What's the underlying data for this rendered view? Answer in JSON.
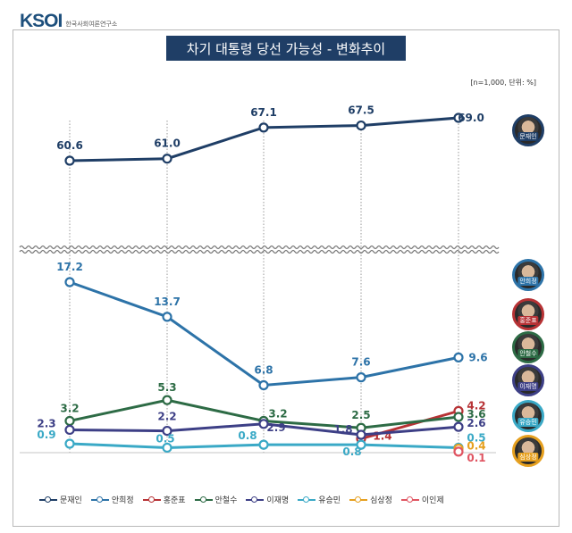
{
  "header": {
    "logo_text": "KSOI",
    "org_name": "한국사회여론연구소"
  },
  "title": "차기 대통령 당선 가능성 - 변화추이",
  "note": "[n=1,000, 단위: %]",
  "chart_data": {
    "type": "line",
    "x": [
      1,
      2,
      3,
      4,
      5
    ],
    "axis_break": true,
    "series": [
      {
        "name": "문재인",
        "color": "#1f3e66",
        "values": [
          60.6,
          61.0,
          67.1,
          67.5,
          69.0
        ],
        "labels": [
          "60.6",
          "61.0",
          "67.1",
          "67.5",
          "69.0"
        ]
      },
      {
        "name": "안희정",
        "color": "#2d73a8",
        "values": [
          17.2,
          13.7,
          6.8,
          7.6,
          9.6
        ],
        "labels": [
          "17.2",
          "13.7",
          "6.8",
          "7.6",
          "9.6"
        ]
      },
      {
        "name": "홍준표",
        "color": "#b73235",
        "values": [
          null,
          null,
          null,
          1.4,
          4.2
        ],
        "labels": [
          "",
          "",
          "",
          "1.4",
          "4.2"
        ]
      },
      {
        "name": "안철수",
        "color": "#2d6b45",
        "values": [
          3.2,
          5.3,
          3.2,
          2.5,
          3.6
        ],
        "labels": [
          "3.2",
          "5.3",
          "3.2",
          "2.5",
          "3.6"
        ]
      },
      {
        "name": "이재명",
        "color": "#3d3f86",
        "values": [
          2.3,
          2.2,
          2.9,
          1.8,
          2.6
        ],
        "labels": [
          "2.3",
          "2.2",
          "2.9",
          "1.8",
          "2.6"
        ]
      },
      {
        "name": "유승민",
        "color": "#3aa9c6",
        "values": [
          0.9,
          0.5,
          0.8,
          0.8,
          0.5
        ],
        "labels": [
          "0.9",
          "0.5",
          "0.8",
          "0.8",
          "0.5"
        ]
      },
      {
        "name": "심상정",
        "color": "#e6a01f",
        "values": [
          null,
          null,
          null,
          null,
          0.4
        ],
        "labels": [
          "",
          "",
          "",
          "",
          "0.4"
        ]
      },
      {
        "name": "이인제",
        "color": "#e05562",
        "values": [
          null,
          null,
          null,
          null,
          0.1
        ],
        "labels": [
          "",
          "",
          "",
          "",
          "0.1"
        ]
      }
    ]
  },
  "portraits": [
    {
      "name": "문재인",
      "color": "#1f3e66"
    },
    {
      "name": "안희정",
      "color": "#2d73a8"
    },
    {
      "name": "홍준표",
      "color": "#b73235"
    },
    {
      "name": "안철수",
      "color": "#2d6b45"
    },
    {
      "name": "이재명",
      "color": "#3d3f86"
    },
    {
      "name": "유승민",
      "color": "#3aa9c6"
    },
    {
      "name": "심상정",
      "color": "#e6a01f"
    }
  ]
}
